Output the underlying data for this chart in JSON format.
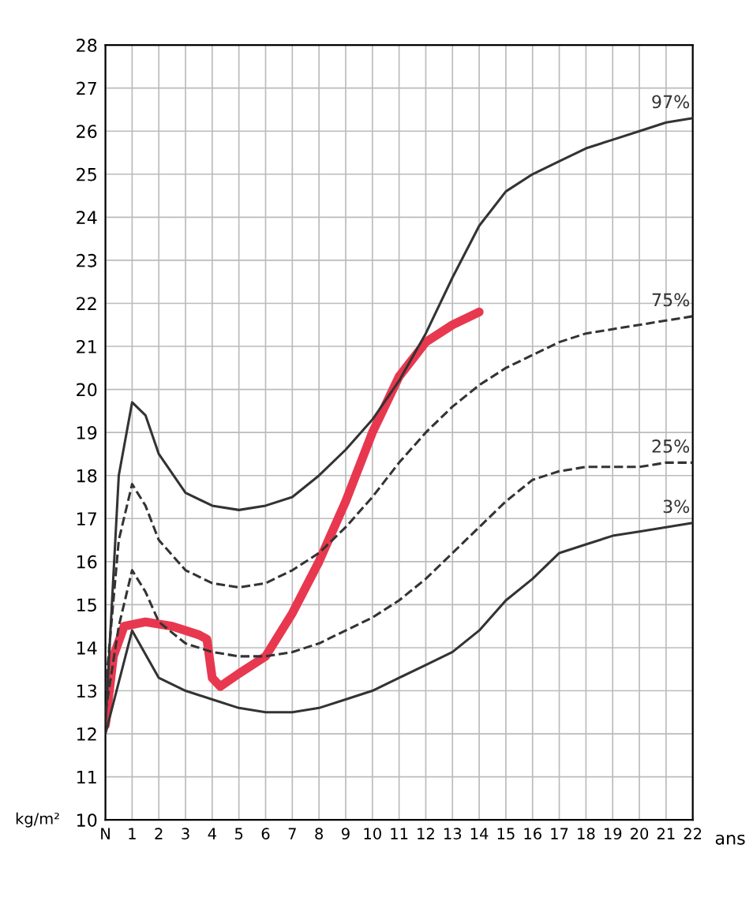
{
  "chart_data": {
    "type": "line",
    "xlabel": "ans",
    "ylabel": "kg/m²",
    "xlim": [
      0,
      22
    ],
    "ylim": [
      10,
      28
    ],
    "xticks": [
      {
        "value": 0,
        "label": "N"
      },
      1,
      2,
      3,
      4,
      5,
      6,
      7,
      8,
      9,
      10,
      11,
      12,
      13,
      14,
      15,
      16,
      17,
      18,
      19,
      20,
      21,
      22
    ],
    "yticks": [
      10,
      11,
      12,
      13,
      14,
      15,
      16,
      17,
      18,
      19,
      20,
      21,
      22,
      23,
      24,
      25,
      26,
      27,
      28
    ],
    "grid": true,
    "legend": false,
    "marker": "none",
    "series": [
      {
        "name": "97%",
        "color": "#333333",
        "line_style": "solid",
        "x": [
          0,
          0.5,
          1,
          1.5,
          2,
          3,
          4,
          5,
          6,
          7,
          8,
          9,
          10,
          11,
          12,
          13,
          14,
          15,
          16,
          17,
          18,
          19,
          20,
          21,
          22
        ],
        "values": [
          12.2,
          18,
          19.7,
          19.4,
          18.5,
          17.6,
          17.3,
          17.2,
          17.3,
          17.5,
          18,
          18.6,
          19.3,
          20.2,
          21.3,
          22.6,
          23.8,
          24.6,
          25.0,
          25.3,
          25.6,
          25.8,
          26.0,
          26.2,
          26.3
        ]
      },
      {
        "name": "75%",
        "color": "#333333",
        "line_style": "dashed",
        "x": [
          0,
          0.5,
          1,
          1.5,
          2,
          3,
          4,
          5,
          6,
          7,
          8,
          9,
          10,
          11,
          12,
          13,
          14,
          15,
          16,
          17,
          18,
          19,
          20,
          21,
          22
        ],
        "values": [
          13,
          16.5,
          17.8,
          17.3,
          16.5,
          15.8,
          15.5,
          15.4,
          15.5,
          15.8,
          16.2,
          16.8,
          17.5,
          18.3,
          19,
          19.6,
          20.1,
          20.5,
          20.8,
          21.1,
          21.3,
          21.4,
          21.5,
          21.6,
          21.7
        ]
      },
      {
        "name": "25%",
        "color": "#333333",
        "line_style": "dashed",
        "x": [
          0,
          0.5,
          1,
          1.5,
          2,
          3,
          4,
          5,
          6,
          7,
          8,
          9,
          10,
          11,
          12,
          13,
          14,
          15,
          16,
          17,
          18,
          19,
          20,
          21,
          22
        ],
        "values": [
          12.5,
          14.5,
          15.8,
          15.3,
          14.6,
          14.1,
          13.9,
          13.8,
          13.8,
          13.9,
          14.1,
          14.4,
          14.7,
          15.1,
          15.6,
          16.2,
          16.8,
          17.4,
          17.9,
          18.1,
          18.2,
          18.2,
          18.2,
          18.3,
          18.3
        ]
      },
      {
        "name": "3%",
        "color": "#333333",
        "line_style": "solid",
        "x": [
          0,
          1,
          2,
          3,
          4,
          5,
          6,
          7,
          8,
          9,
          10,
          11,
          12,
          13,
          14,
          15,
          16,
          17,
          18,
          19,
          20,
          21,
          22
        ],
        "values": [
          12,
          14.4,
          13.3,
          13.0,
          12.8,
          12.6,
          12.5,
          12.5,
          12.6,
          12.8,
          13.0,
          13.3,
          13.6,
          13.9,
          14.4,
          15.1,
          15.6,
          16.2,
          16.4,
          16.6,
          16.7,
          16.8,
          16.9
        ]
      },
      {
        "color": "#e8384f",
        "line_style": "solid",
        "x": [
          0,
          0.3,
          0.7,
          1.5,
          2.5,
          3.5,
          3.8,
          4,
          4.3,
          5,
          6,
          7,
          8,
          9,
          10,
          11,
          12,
          13,
          14
        ],
        "values": [
          12.2,
          13.8,
          14.5,
          14.6,
          14.5,
          14.3,
          14.2,
          13.3,
          13.1,
          13.4,
          13.8,
          14.8,
          16,
          17.4,
          19,
          20.3,
          21.1,
          21.5,
          21.8
        ]
      }
    ]
  }
}
